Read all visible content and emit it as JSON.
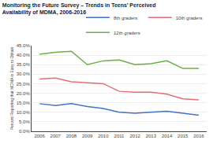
{
  "chart_data": {
    "type": "line",
    "title": "Monitoring the Future Survey – Trends in Teens’ Perceived",
    "subtitle": "Availability of MDMA, 2006-2016",
    "ylabel": "Percent Reporting that MDMA is Easy to Obtain",
    "x": [
      2006,
      2007,
      2008,
      2009,
      2010,
      2011,
      2012,
      2013,
      2014,
      2015,
      2016
    ],
    "series": [
      {
        "name": "8th graders",
        "color": "#4472c4",
        "values": [
          14.5,
          13.5,
          14.5,
          13.0,
          12.0,
          10.0,
          9.5,
          10.0,
          10.5,
          9.5,
          8.5
        ]
      },
      {
        "name": "10th graders",
        "color": "#e07070",
        "values": [
          27.5,
          28.0,
          26.0,
          25.5,
          25.0,
          21.0,
          20.5,
          20.5,
          19.5,
          17.0,
          16.5
        ]
      },
      {
        "name": "12th graders",
        "color": "#70ad47",
        "values": [
          40.5,
          41.5,
          42.0,
          35.0,
          37.0,
          37.5,
          35.0,
          35.5,
          37.0,
          33.0,
          33.0
        ]
      }
    ],
    "xlim": [
      2005.5,
      2016.5
    ],
    "xticks": [
      2006,
      2007,
      2008,
      2009,
      2010,
      2011,
      2012,
      2013,
      2014,
      2015,
      2016
    ],
    "ylim": [
      0,
      45
    ],
    "yticks": [
      {
        "value": 0,
        "label": "0.0%"
      },
      {
        "value": 5,
        "label": "5.0%"
      },
      {
        "value": 10,
        "label": "10.0%"
      },
      {
        "value": 15,
        "label": "15.0%"
      },
      {
        "value": 20,
        "label": "20.0%"
      },
      {
        "value": 25,
        "label": "25.0%"
      },
      {
        "value": 30,
        "label": "30.0%"
      },
      {
        "value": 35,
        "label": "35.0%"
      },
      {
        "value": 40,
        "label": "40.0%"
      },
      {
        "value": 45,
        "label": "45.0%"
      }
    ],
    "grid": true,
    "legend": "upper right"
  }
}
